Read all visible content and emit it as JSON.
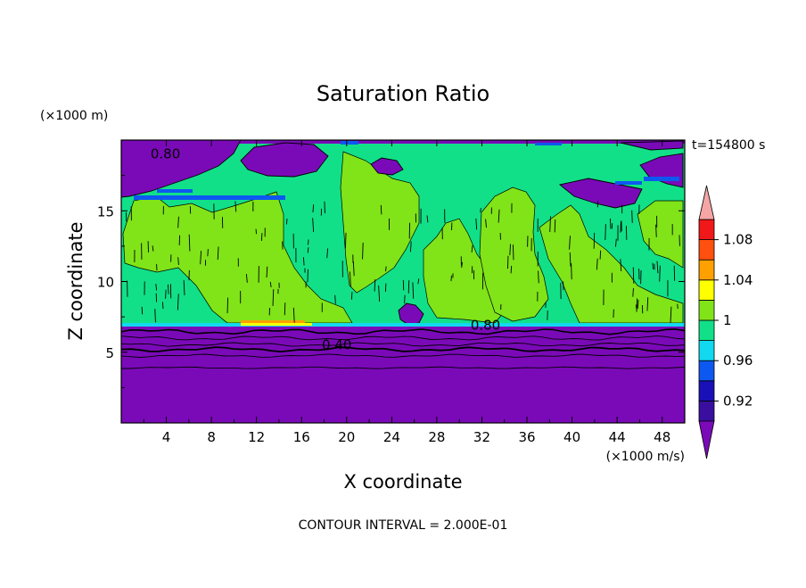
{
  "chart_data": {
    "type": "heatmap",
    "title": "Saturation Ratio",
    "xlabel": "X coordinate",
    "ylabel": "Z coordinate",
    "x_unit": "(×1000 m/s)",
    "y_unit": "(×1000 m)",
    "time_label": "t=154800 s",
    "contour_interval_text": "CONTOUR INTERVAL = 2.000E-01",
    "xlim": [
      0,
      50
    ],
    "ylim": [
      0,
      20
    ],
    "x_ticks": [
      4,
      8,
      12,
      16,
      20,
      24,
      28,
      32,
      36,
      40,
      44,
      48
    ],
    "y_ticks": [
      5,
      10,
      15
    ],
    "x_tick_labels": [
      "4",
      "8",
      "12",
      "16",
      "20",
      "24",
      "28",
      "32",
      "36",
      "40",
      "44",
      "48"
    ],
    "y_tick_labels": [
      "5",
      "10",
      "15"
    ],
    "contour_labels": [
      {
        "text": "0.80",
        "x": 2.6,
        "y": 18.7
      },
      {
        "text": "0.80",
        "x": 31.0,
        "y": 6.6
      },
      {
        "text": "0.40",
        "x": 17.8,
        "y": 5.2
      }
    ],
    "colorbar": {
      "levels": [
        0.9,
        0.92,
        0.94,
        0.96,
        0.98,
        1.0,
        1.02,
        1.04,
        1.06,
        1.08,
        1.1
      ],
      "tick_labels": [
        "0.92",
        "0.96",
        "1",
        "1.04",
        "1.08"
      ],
      "tick_values": [
        0.92,
        0.96,
        1.0,
        1.04,
        1.08
      ],
      "colors": [
        "#3a0fa0",
        "#1a10b8",
        "#0d58f0",
        "#12d8f0",
        "#12e088",
        "#80e418",
        "#ffff00",
        "#ffa000",
        "#ff5010",
        "#f01818"
      ],
      "under_color": "#7a0ab8",
      "over_color": "#f5a5a5"
    },
    "layers": {
      "colors": {
        "dry": "#7a0ab8",
        "near": "#12e088",
        "super": "#80e418",
        "blue": "#0d58f0",
        "cyan": "#12d8f0",
        "orange": "#ffa000",
        "yellow": "#ffff00"
      }
    }
  }
}
